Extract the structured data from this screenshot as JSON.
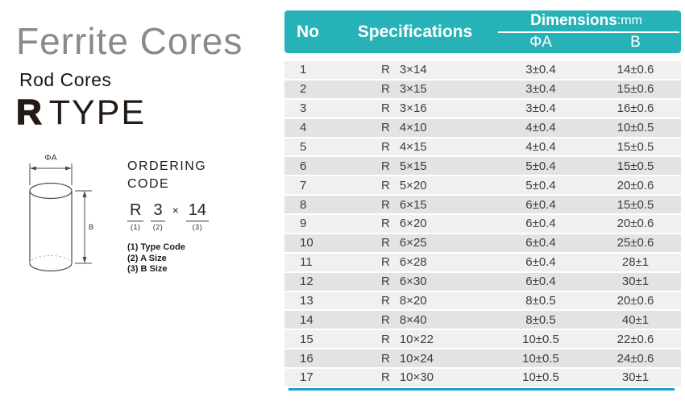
{
  "left_panel": {
    "title": "Ferrite Cores",
    "subtitle": "Rod Cores",
    "type_label": {
      "bold": "R",
      "rest": "TYPE"
    },
    "diagram": {
      "dim_a_label": "ΦA",
      "dim_b_label": "B"
    },
    "ordering_code": {
      "heading": [
        "ORDERING",
        "CODE"
      ],
      "code_parts": [
        {
          "text": "R",
          "marker": "(1)",
          "sep": false
        },
        {
          "text": "3",
          "marker": "(2)",
          "sep": false
        },
        {
          "text": "×",
          "marker": "",
          "sep": true
        },
        {
          "text": "14",
          "marker": "(3)",
          "sep": false
        }
      ],
      "legend": [
        "(1) Type Code",
        "(2) A Size",
        "(3) B Size"
      ]
    }
  },
  "table": {
    "header": {
      "no": "No",
      "specifications": "Specifications",
      "dimensions": "Dimensions",
      "dimensions_unit": ":mm",
      "col_a": "ΦA",
      "col_b": "B"
    },
    "rows": [
      {
        "no": "1",
        "type": "R",
        "size": "3×14",
        "a": "3±0.4",
        "b": "14±0.6"
      },
      {
        "no": "2",
        "type": "R",
        "size": "3×15",
        "a": "3±0.4",
        "b": "15±0.6"
      },
      {
        "no": "3",
        "type": "R",
        "size": "3×16",
        "a": "3±0.4",
        "b": "16±0.6"
      },
      {
        "no": "4",
        "type": "R",
        "size": "4×10",
        "a": "4±0.4",
        "b": "10±0.5"
      },
      {
        "no": "5",
        "type": "R",
        "size": "4×15",
        "a": "4±0.4",
        "b": "15±0.5"
      },
      {
        "no": "6",
        "type": "R",
        "size": "5×15",
        "a": "5±0.4",
        "b": "15±0.5"
      },
      {
        "no": "7",
        "type": "R",
        "size": "5×20",
        "a": "5±0.4",
        "b": "20±0.6"
      },
      {
        "no": "8",
        "type": "R",
        "size": "6×15",
        "a": "6±0.4",
        "b": "15±0.5"
      },
      {
        "no": "9",
        "type": "R",
        "size": "6×20",
        "a": "6±0.4",
        "b": "20±0.6"
      },
      {
        "no": "10",
        "type": "R",
        "size": "6×25",
        "a": "6±0.4",
        "b": "25±0.6"
      },
      {
        "no": "11",
        "type": "R",
        "size": "6×28",
        "a": "6±0.4",
        "b": "28±1"
      },
      {
        "no": "12",
        "type": "R",
        "size": "6×30",
        "a": "6±0.4",
        "b": "30±1"
      },
      {
        "no": "13",
        "type": "R",
        "size": "8×20",
        "a": "8±0.5",
        "b": "20±0.6"
      },
      {
        "no": "14",
        "type": "R",
        "size": "8×40",
        "a": "8±0.5",
        "b": "40±1"
      },
      {
        "no": "15",
        "type": "R",
        "size": "10×22",
        "a": "10±0.5",
        "b": "22±0.6"
      },
      {
        "no": "16",
        "type": "R",
        "size": "10×24",
        "a": "10±0.5",
        "b": "24±0.6"
      },
      {
        "no": "17",
        "type": "R",
        "size": "10×30",
        "a": "10±0.5",
        "b": "30±1"
      }
    ]
  },
  "colors": {
    "header_teal": "#27b2b8",
    "accent_blue": "#1b9fd4",
    "row_light": "#f0f0ee",
    "row_dark": "#e3e3e1"
  }
}
